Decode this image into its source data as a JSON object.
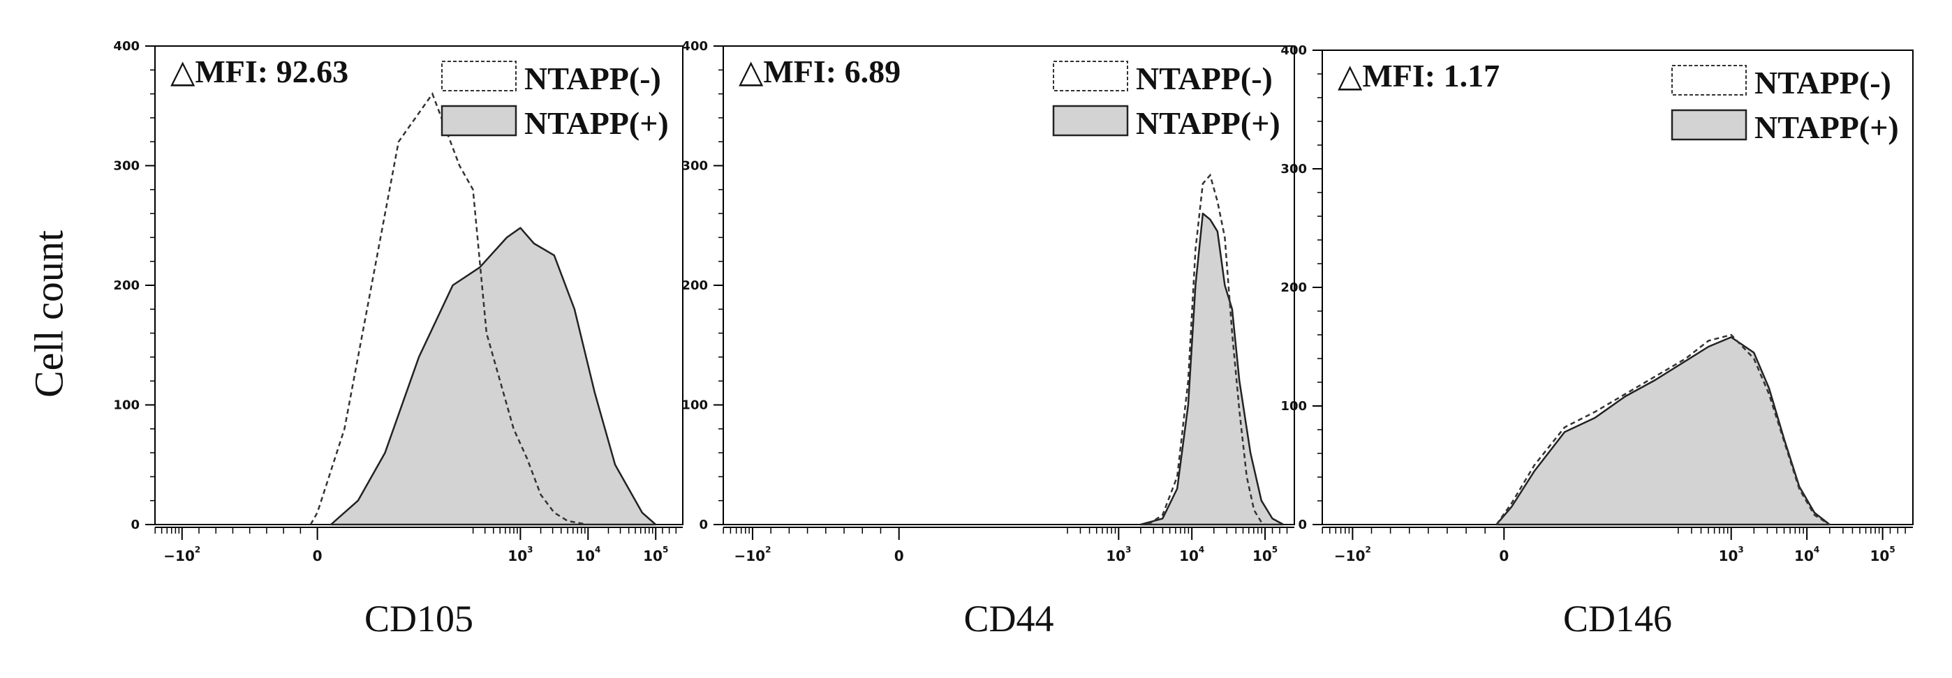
{
  "figure": {
    "ylabel": "Cell count",
    "legend": [
      "NTAPP(-)",
      "NTAPP(+)"
    ],
    "mfi_prefix": "△MFI: "
  },
  "chart_data": [
    {
      "type": "area",
      "title": "CD105",
      "xlabel": "CD105",
      "ylabel": "Cell count",
      "mfi": "92.63",
      "ylim": [
        0,
        400
      ],
      "yticks": [
        0,
        100,
        200,
        300,
        400
      ],
      "x_scale": "biexponential (log10)",
      "x_range": [
        -2.4,
        5.4
      ],
      "xticks": [
        {
          "pos": -2,
          "base": "−10",
          "exp": "2"
        },
        {
          "pos": 0,
          "base": "0",
          "exp": ""
        },
        {
          "pos": 3,
          "base": "10",
          "exp": "3"
        },
        {
          "pos": 4,
          "base": "10",
          "exp": "4"
        },
        {
          "pos": 5,
          "base": "10",
          "exp": "5"
        }
      ],
      "series": [
        {
          "name": "NTAPP(-)",
          "style": "dashed",
          "x": [
            -0.1,
            0.0,
            0.4,
            0.8,
            1.2,
            1.7,
            2.1,
            2.3,
            2.5,
            2.7,
            2.9,
            3.1,
            3.3,
            3.5,
            3.7,
            4.0
          ],
          "y": [
            0,
            10,
            80,
            200,
            320,
            360,
            300,
            280,
            160,
            120,
            80,
            55,
            25,
            10,
            3,
            0
          ]
        },
        {
          "name": "NTAPP(+)",
          "style": "filled",
          "x": [
            0.2,
            0.6,
            1.0,
            1.5,
            2.0,
            2.4,
            2.8,
            3.0,
            3.2,
            3.5,
            3.8,
            4.1,
            4.4,
            4.8,
            5.0
          ],
          "y": [
            0,
            20,
            60,
            140,
            200,
            215,
            240,
            248,
            235,
            225,
            180,
            110,
            50,
            10,
            0
          ]
        }
      ]
    },
    {
      "type": "area",
      "title": "CD44",
      "xlabel": "CD44",
      "ylabel": "Cell count",
      "mfi": "6.89",
      "ylim": [
        0,
        400
      ],
      "yticks": [
        0,
        100,
        200,
        300,
        400
      ],
      "x_scale": "biexponential (log10)",
      "x_range": [
        -2.4,
        5.4
      ],
      "xticks": [
        {
          "pos": -2,
          "base": "−10",
          "exp": "2"
        },
        {
          "pos": 0,
          "base": "0",
          "exp": ""
        },
        {
          "pos": 3,
          "base": "10",
          "exp": "3"
        },
        {
          "pos": 4,
          "base": "10",
          "exp": "4"
        },
        {
          "pos": 5,
          "base": "10",
          "exp": "5"
        }
      ],
      "series": [
        {
          "name": "NTAPP(-)",
          "style": "dashed",
          "x": [
            3.4,
            3.6,
            3.8,
            3.95,
            4.05,
            4.15,
            4.25,
            4.35,
            4.45,
            4.55,
            4.65,
            4.75,
            4.85,
            4.95,
            5.0
          ],
          "y": [
            0,
            8,
            40,
            120,
            230,
            285,
            292,
            270,
            240,
            160,
            95,
            40,
            12,
            2,
            0
          ]
        },
        {
          "name": "NTAPP(+)",
          "style": "filled",
          "x": [
            3.3,
            3.6,
            3.8,
            3.95,
            4.05,
            4.15,
            4.25,
            4.35,
            4.45,
            4.55,
            4.65,
            4.8,
            4.95,
            5.1,
            5.25
          ],
          "y": [
            0,
            5,
            30,
            100,
            200,
            260,
            255,
            245,
            200,
            180,
            120,
            60,
            20,
            5,
            0
          ]
        }
      ]
    },
    {
      "type": "area",
      "title": "CD146",
      "xlabel": "CD146",
      "ylabel": "Cell count",
      "mfi": "1.17",
      "ylim": [
        0,
        400
      ],
      "yticks": [
        0,
        100,
        200,
        300,
        400
      ],
      "x_scale": "biexponential (log10)",
      "x_range": [
        -2.4,
        5.4
      ],
      "xticks": [
        {
          "pos": -2,
          "base": "−10",
          "exp": "2"
        },
        {
          "pos": 0,
          "base": "0",
          "exp": ""
        },
        {
          "pos": 3,
          "base": "10",
          "exp": "3"
        },
        {
          "pos": 4,
          "base": "10",
          "exp": "4"
        },
        {
          "pos": 5,
          "base": "10",
          "exp": "5"
        }
      ],
      "series": [
        {
          "name": "NTAPP(-)",
          "style": "dashed",
          "x": [
            -0.1,
            0.1,
            0.4,
            0.8,
            1.2,
            1.6,
            2.0,
            2.4,
            2.7,
            3.0,
            3.3,
            3.5,
            3.7,
            3.9,
            4.1,
            4.3
          ],
          "y": [
            0,
            18,
            50,
            82,
            95,
            110,
            125,
            140,
            155,
            160,
            140,
            110,
            70,
            30,
            8,
            0
          ]
        },
        {
          "name": "NTAPP(+)",
          "style": "filled",
          "x": [
            -0.1,
            0.1,
            0.4,
            0.8,
            1.2,
            1.6,
            2.0,
            2.4,
            2.7,
            3.0,
            3.3,
            3.5,
            3.7,
            3.9,
            4.1,
            4.3
          ],
          "y": [
            0,
            15,
            45,
            78,
            90,
            108,
            122,
            138,
            150,
            158,
            145,
            115,
            72,
            32,
            10,
            0
          ]
        }
      ]
    }
  ]
}
